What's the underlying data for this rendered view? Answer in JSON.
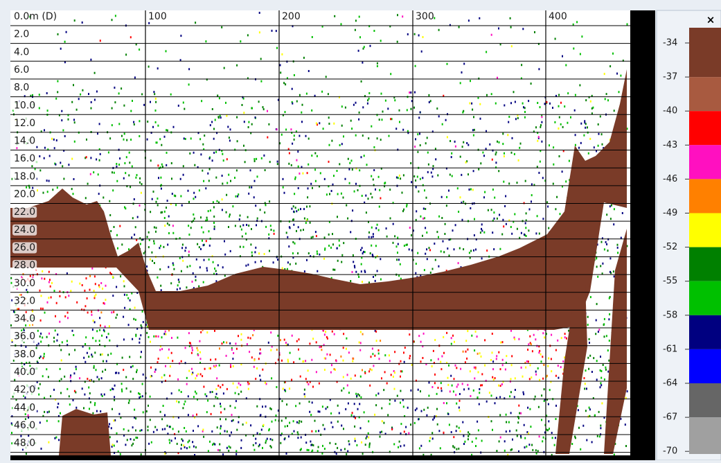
{
  "depth_axis": {
    "labels": [
      "0.0m (D)",
      "2.0",
      "4.0",
      "6.0",
      "8.0",
      "10.0",
      "12.0",
      "14.0",
      "16.0",
      "18.0",
      "20.0",
      "22.0",
      "24.0",
      "26.0",
      "28.0",
      "30.0",
      "32.0",
      "34.0",
      "36.0",
      "38.0",
      "40.0",
      "42.0",
      "44.0",
      "46.0",
      "48.0"
    ]
  },
  "range_axis": {
    "labels": [
      "100",
      "200",
      "300",
      "400"
    ]
  },
  "color_scale": {
    "close": "×",
    "labels": [
      "-34",
      "-37",
      "-40",
      "-43",
      "-46",
      "-49",
      "-52",
      "-55",
      "-58",
      "-61",
      "-64",
      "-67",
      "-70"
    ],
    "colors": [
      "#7a3b28",
      "#a85a40",
      "#ff0000",
      "#ff10c0",
      "#ff8000",
      "#ffff00",
      "#008000",
      "#00c000",
      "#000080",
      "#0000ff",
      "#666666",
      "#a0a0a0"
    ]
  }
}
